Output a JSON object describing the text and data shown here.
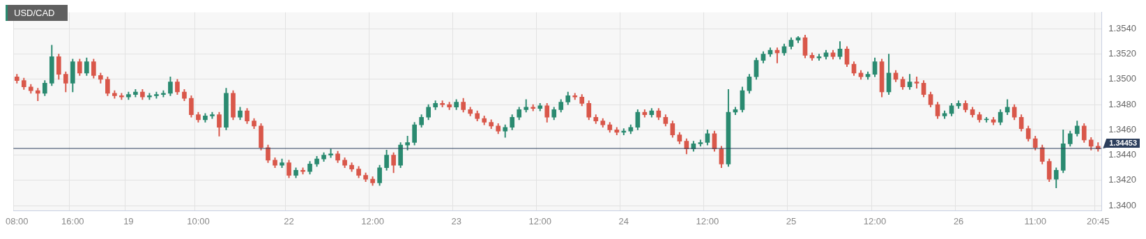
{
  "chart_data": {
    "type": "candlestick",
    "title": "USD/CAD",
    "categories": [
      "08:00",
      null,
      null,
      null,
      null,
      null,
      null,
      null,
      "16:00",
      null,
      null,
      null,
      null,
      null,
      null,
      null,
      "19",
      null,
      null,
      null,
      null,
      null,
      null,
      null,
      null,
      null,
      "10:00",
      null,
      null,
      null,
      null,
      null,
      null,
      null,
      null,
      null,
      null,
      null,
      null,
      "22",
      null,
      null,
      null,
      null,
      null,
      null,
      null,
      null,
      null,
      null,
      null,
      "12:00",
      null,
      null,
      null,
      null,
      null,
      null,
      null,
      null,
      null,
      null,
      null,
      "23",
      null,
      null,
      null,
      null,
      null,
      null,
      null,
      null,
      null,
      null,
      null,
      "12:00",
      null,
      null,
      null,
      null,
      null,
      null,
      null,
      null,
      null,
      null,
      null,
      "24",
      null,
      null,
      null,
      null,
      null,
      null,
      null,
      null,
      null,
      null,
      null,
      "12:00",
      null,
      null,
      null,
      null,
      null,
      null,
      null,
      null,
      null,
      null,
      null,
      "25",
      null,
      null,
      null,
      null,
      null,
      null,
      null,
      null,
      null,
      null,
      null,
      "12:00",
      null,
      null,
      null,
      null,
      null,
      null,
      null,
      null,
      null,
      null,
      null,
      "26",
      null,
      null,
      null,
      null,
      null,
      null,
      null,
      null,
      null,
      null,
      "11:00",
      null,
      null,
      null,
      null,
      null,
      null,
      null,
      null,
      "20:45"
    ],
    "ohlc": [
      [
        1.3502,
        1.3504,
        1.3497,
        1.3499
      ],
      [
        1.3499,
        1.3501,
        1.3492,
        1.3494
      ],
      [
        1.3494,
        1.3496,
        1.3489,
        1.3491
      ],
      [
        1.3491,
        1.3493,
        1.3483,
        1.3489
      ],
      [
        1.3489,
        1.3499,
        1.3487,
        1.3497
      ],
      [
        1.3497,
        1.3527,
        1.3495,
        1.3518
      ],
      [
        1.3518,
        1.352,
        1.35,
        1.3504
      ],
      [
        1.3504,
        1.3506,
        1.349,
        1.3497
      ],
      [
        1.3497,
        1.3516,
        1.349,
        1.3514
      ],
      [
        1.3514,
        1.3516,
        1.3503,
        1.3505
      ],
      [
        1.3505,
        1.3517,
        1.3503,
        1.3514
      ],
      [
        1.3514,
        1.3516,
        1.3501,
        1.3503
      ],
      [
        1.3503,
        1.3505,
        1.3497,
        1.35
      ],
      [
        1.35,
        1.3502,
        1.3487,
        1.3489
      ],
      [
        1.3489,
        1.3491,
        1.3485,
        1.3487
      ],
      [
        1.3487,
        1.3489,
        1.3484,
        1.3486
      ],
      [
        1.3486,
        1.349,
        1.3484,
        1.3488
      ],
      [
        1.3488,
        1.3492,
        1.3486,
        1.349
      ],
      [
        1.349,
        1.3492,
        1.3484,
        1.3486
      ],
      [
        1.3486,
        1.3489,
        1.3484,
        1.3487
      ],
      [
        1.3487,
        1.349,
        1.3485,
        1.3488
      ],
      [
        1.3488,
        1.3491,
        1.3486,
        1.3489
      ],
      [
        1.3489,
        1.3502,
        1.3487,
        1.3498
      ],
      [
        1.3498,
        1.35,
        1.3488,
        1.349
      ],
      [
        1.349,
        1.3492,
        1.3483,
        1.3485
      ],
      [
        1.3485,
        1.3487,
        1.347,
        1.3472
      ],
      [
        1.3472,
        1.3474,
        1.3466,
        1.3468
      ],
      [
        1.3468,
        1.3473,
        1.3466,
        1.3471
      ],
      [
        1.3471,
        1.3474,
        1.3469,
        1.3472
      ],
      [
        1.3472,
        1.3474,
        1.3455,
        1.3462
      ],
      [
        1.3462,
        1.3493,
        1.346,
        1.3489
      ],
      [
        1.3489,
        1.3491,
        1.3468,
        1.347
      ],
      [
        1.347,
        1.3478,
        1.3468,
        1.3475
      ],
      [
        1.3475,
        1.3477,
        1.3465,
        1.3467
      ],
      [
        1.3467,
        1.3469,
        1.3461,
        1.3463
      ],
      [
        1.3463,
        1.3465,
        1.3444,
        1.3446
      ],
      [
        1.3446,
        1.3448,
        1.3434,
        1.3436
      ],
      [
        1.3436,
        1.3438,
        1.343,
        1.3432
      ],
      [
        1.3432,
        1.3437,
        1.343,
        1.3434
      ],
      [
        1.3434,
        1.3436,
        1.3422,
        1.3424
      ],
      [
        1.3424,
        1.343,
        1.3422,
        1.3428
      ],
      [
        1.3428,
        1.343,
        1.3425,
        1.3427
      ],
      [
        1.3427,
        1.3435,
        1.3425,
        1.3433
      ],
      [
        1.3433,
        1.3439,
        1.3431,
        1.3437
      ],
      [
        1.3437,
        1.3442,
        1.3435,
        1.344
      ],
      [
        1.344,
        1.3445,
        1.3438,
        1.3441
      ],
      [
        1.3441,
        1.3443,
        1.3434,
        1.3436
      ],
      [
        1.3436,
        1.3438,
        1.343,
        1.3432
      ],
      [
        1.3432,
        1.3434,
        1.3427,
        1.3429
      ],
      [
        1.3429,
        1.3431,
        1.3422,
        1.3424
      ],
      [
        1.3424,
        1.3426,
        1.3419,
        1.3421
      ],
      [
        1.3421,
        1.3423,
        1.3416,
        1.3418
      ],
      [
        1.3418,
        1.3432,
        1.3416,
        1.343
      ],
      [
        1.343,
        1.3444,
        1.3428,
        1.344
      ],
      [
        1.344,
        1.3442,
        1.3426,
        1.3432
      ],
      [
        1.3432,
        1.345,
        1.343,
        1.3448
      ],
      [
        1.3448,
        1.3455,
        1.3444,
        1.345
      ],
      [
        1.345,
        1.3466,
        1.3448,
        1.3464
      ],
      [
        1.3464,
        1.3472,
        1.3462,
        1.347
      ],
      [
        1.347,
        1.348,
        1.3468,
        1.3478
      ],
      [
        1.3478,
        1.3483,
        1.3476,
        1.3481
      ],
      [
        1.3481,
        1.3483,
        1.3478,
        1.348
      ],
      [
        1.348,
        1.3482,
        1.3476,
        1.3478
      ],
      [
        1.3478,
        1.3484,
        1.3476,
        1.3482
      ],
      [
        1.3482,
        1.3485,
        1.3474,
        1.3476
      ],
      [
        1.3476,
        1.3478,
        1.3471,
        1.3473
      ],
      [
        1.3473,
        1.3475,
        1.3467,
        1.3469
      ],
      [
        1.3469,
        1.3471,
        1.3464,
        1.3466
      ],
      [
        1.3466,
        1.3468,
        1.3461,
        1.3463
      ],
      [
        1.3463,
        1.3465,
        1.3457,
        1.3459
      ],
      [
        1.3459,
        1.3464,
        1.3454,
        1.3462
      ],
      [
        1.3462,
        1.3472,
        1.346,
        1.347
      ],
      [
        1.347,
        1.3478,
        1.3468,
        1.3476
      ],
      [
        1.3476,
        1.3484,
        1.3474,
        1.3478
      ],
      [
        1.3478,
        1.348,
        1.3475,
        1.3477
      ],
      [
        1.3477,
        1.3481,
        1.3475,
        1.3479
      ],
      [
        1.3479,
        1.3481,
        1.3466,
        1.347
      ],
      [
        1.347,
        1.3478,
        1.3468,
        1.3476
      ],
      [
        1.3476,
        1.3484,
        1.3474,
        1.3482
      ],
      [
        1.3482,
        1.349,
        1.348,
        1.3487
      ],
      [
        1.3487,
        1.3489,
        1.3484,
        1.3486
      ],
      [
        1.3486,
        1.3488,
        1.3479,
        1.3481
      ],
      [
        1.3481,
        1.3483,
        1.3468,
        1.347
      ],
      [
        1.347,
        1.3472,
        1.3465,
        1.3467
      ],
      [
        1.3467,
        1.3469,
        1.3462,
        1.3464
      ],
      [
        1.3464,
        1.3466,
        1.3458,
        1.346
      ],
      [
        1.346,
        1.3462,
        1.3456,
        1.3458
      ],
      [
        1.3458,
        1.3461,
        1.3456,
        1.3459
      ],
      [
        1.3459,
        1.3464,
        1.3457,
        1.3462
      ],
      [
        1.3462,
        1.3476,
        1.346,
        1.3474
      ],
      [
        1.3474,
        1.3476,
        1.347,
        1.3472
      ],
      [
        1.3472,
        1.3477,
        1.347,
        1.3475
      ],
      [
        1.3475,
        1.3477,
        1.3468,
        1.347
      ],
      [
        1.347,
        1.3472,
        1.3463,
        1.3465
      ],
      [
        1.3465,
        1.3467,
        1.3454,
        1.3456
      ],
      [
        1.3456,
        1.3458,
        1.3449,
        1.3451
      ],
      [
        1.3451,
        1.3453,
        1.3441,
        1.3445
      ],
      [
        1.3445,
        1.3451,
        1.3443,
        1.3449
      ],
      [
        1.3449,
        1.3452,
        1.3447,
        1.345
      ],
      [
        1.345,
        1.346,
        1.3448,
        1.3457
      ],
      [
        1.3457,
        1.3459,
        1.3443,
        1.3445
      ],
      [
        1.3445,
        1.3447,
        1.343,
        1.3433
      ],
      [
        1.3433,
        1.3492,
        1.3431,
        1.3474
      ],
      [
        1.3474,
        1.3478,
        1.3472,
        1.3476
      ],
      [
        1.3476,
        1.3494,
        1.3474,
        1.3491
      ],
      [
        1.3491,
        1.3504,
        1.3489,
        1.3502
      ],
      [
        1.3502,
        1.3517,
        1.35,
        1.3515
      ],
      [
        1.3515,
        1.3522,
        1.3513,
        1.352
      ],
      [
        1.352,
        1.3525,
        1.3518,
        1.3523
      ],
      [
        1.3523,
        1.3525,
        1.3513,
        1.3521
      ],
      [
        1.3521,
        1.3528,
        1.3519,
        1.3526
      ],
      [
        1.3526,
        1.3533,
        1.3524,
        1.3531
      ],
      [
        1.3531,
        1.3534,
        1.3529,
        1.3533
      ],
      [
        1.3533,
        1.3535,
        1.3517,
        1.3519
      ],
      [
        1.3519,
        1.3521,
        1.3515,
        1.3517
      ],
      [
        1.3517,
        1.352,
        1.3515,
        1.3518
      ],
      [
        1.3518,
        1.3523,
        1.3516,
        1.3521
      ],
      [
        1.3521,
        1.3523,
        1.3516,
        1.3518
      ],
      [
        1.3518,
        1.353,
        1.3516,
        1.3524
      ],
      [
        1.3524,
        1.3526,
        1.351,
        1.3512
      ],
      [
        1.3512,
        1.3514,
        1.3503,
        1.3505
      ],
      [
        1.3505,
        1.3507,
        1.35,
        1.3502
      ],
      [
        1.3502,
        1.3506,
        1.35,
        1.3504
      ],
      [
        1.3504,
        1.3517,
        1.3502,
        1.3514
      ],
      [
        1.3514,
        1.3516,
        1.3486,
        1.349
      ],
      [
        1.349,
        1.352,
        1.3488,
        1.3505
      ],
      [
        1.3505,
        1.3507,
        1.3498,
        1.35
      ],
      [
        1.35,
        1.3502,
        1.3492,
        1.3494
      ],
      [
        1.3494,
        1.3504,
        1.3492,
        1.3498
      ],
      [
        1.3498,
        1.3502,
        1.3493,
        1.3497
      ],
      [
        1.3497,
        1.3499,
        1.3486,
        1.3488
      ],
      [
        1.3488,
        1.349,
        1.3478,
        1.348
      ],
      [
        1.348,
        1.3482,
        1.3469,
        1.3471
      ],
      [
        1.3471,
        1.3475,
        1.3469,
        1.3473
      ],
      [
        1.3473,
        1.3481,
        1.3471,
        1.3479
      ],
      [
        1.3479,
        1.3483,
        1.3477,
        1.3481
      ],
      [
        1.3481,
        1.3483,
        1.3474,
        1.3476
      ],
      [
        1.3476,
        1.3478,
        1.347,
        1.3472
      ],
      [
        1.3472,
        1.3474,
        1.3466,
        1.3468
      ],
      [
        1.3468,
        1.347,
        1.3466,
        1.3468
      ],
      [
        1.3468,
        1.347,
        1.3464,
        1.3466
      ],
      [
        1.3466,
        1.3476,
        1.3464,
        1.3474
      ],
      [
        1.3474,
        1.3484,
        1.3472,
        1.3478
      ],
      [
        1.3478,
        1.348,
        1.3468,
        1.347
      ],
      [
        1.347,
        1.3472,
        1.3459,
        1.3461
      ],
      [
        1.3461,
        1.3463,
        1.3451,
        1.3453
      ],
      [
        1.3453,
        1.3455,
        1.3444,
        1.3446
      ],
      [
        1.3446,
        1.3448,
        1.3433,
        1.3435
      ],
      [
        1.3435,
        1.3437,
        1.3419,
        1.3421
      ],
      [
        1.3421,
        1.343,
        1.3414,
        1.3428
      ],
      [
        1.3428,
        1.346,
        1.3426,
        1.3449
      ],
      [
        1.3449,
        1.3459,
        1.3447,
        1.3457
      ],
      [
        1.3457,
        1.3467,
        1.3455,
        1.3463
      ],
      [
        1.3463,
        1.3465,
        1.345,
        1.3452
      ],
      [
        1.3452,
        1.3454,
        1.3444,
        1.3447
      ],
      [
        1.3447,
        1.345,
        1.3443,
        1.3445
      ]
    ],
    "colors": [
      "#d9574a",
      "#d9574a",
      "#d9574a",
      "#d9574a",
      "#2a8a70",
      "#2a8a70",
      "#d9574a",
      "#d9574a",
      "#2a8a70",
      "#d9574a",
      "#2a8a70",
      "#d9574a",
      "#d9574a",
      "#d9574a",
      "#d9574a",
      "#d9574a",
      "#2a8a70",
      "#2a8a70",
      "#d9574a",
      "#2a8a70",
      "#2a8a70",
      "#2a8a70",
      "#2a8a70",
      "#d9574a",
      "#d9574a",
      "#d9574a",
      "#d9574a",
      "#2a8a70",
      "#2a8a70",
      "#d9574a",
      "#2a8a70",
      "#d9574a",
      "#2a8a70",
      "#d9574a",
      "#d9574a",
      "#d9574a",
      "#d9574a",
      "#d9574a",
      "#2a8a70",
      "#d9574a",
      "#2a8a70",
      "#d9574a",
      "#2a8a70",
      "#2a8a70",
      "#2a8a70",
      "#2a8a70",
      "#d9574a",
      "#d9574a",
      "#d9574a",
      "#d9574a",
      "#d9574a",
      "#d9574a",
      "#2a8a70",
      "#2a8a70",
      "#d9574a",
      "#2a8a70",
      "#2a8a70",
      "#2a8a70",
      "#2a8a70",
      "#2a8a70",
      "#2a8a70",
      "#d9574a",
      "#d9574a",
      "#2a8a70",
      "#d9574a",
      "#d9574a",
      "#d9574a",
      "#d9574a",
      "#d9574a",
      "#d9574a",
      "#2a8a70",
      "#2a8a70",
      "#2a8a70",
      "#2a8a70",
      "#d9574a",
      "#2a8a70",
      "#d9574a",
      "#2a8a70",
      "#2a8a70",
      "#2a8a70",
      "#d9574a",
      "#d9574a",
      "#d9574a",
      "#d9574a",
      "#d9574a",
      "#d9574a",
      "#d9574a",
      "#2a8a70",
      "#2a8a70",
      "#2a8a70",
      "#d9574a",
      "#2a8a70",
      "#d9574a",
      "#d9574a",
      "#d9574a",
      "#d9574a",
      "#d9574a",
      "#2a8a70",
      "#2a8a70",
      "#2a8a70",
      "#d9574a",
      "#d9574a",
      "#2a8a70",
      "#2a8a70",
      "#2a8a70",
      "#2a8a70",
      "#2a8a70",
      "#2a8a70",
      "#2a8a70",
      "#d9574a",
      "#2a8a70",
      "#2a8a70",
      "#2a8a70",
      "#d9574a",
      "#d9574a",
      "#2a8a70",
      "#2a8a70",
      "#d9574a",
      "#2a8a70",
      "#d9574a",
      "#d9574a",
      "#d9574a",
      "#2a8a70",
      "#2a8a70",
      "#d9574a",
      "#2a8a70",
      "#d9574a",
      "#d9574a",
      "#2a8a70",
      "#d9574a",
      "#d9574a",
      "#d9574a",
      "#d9574a",
      "#2a8a70",
      "#2a8a70",
      "#2a8a70",
      "#d9574a",
      "#d9574a",
      "#d9574a",
      "#2a8a70",
      "#d9574a",
      "#2a8a70",
      "#2a8a70",
      "#d9574a",
      "#d9574a",
      "#d9574a",
      "#d9574a",
      "#d9574a",
      "#d9574a",
      "#2a8a70",
      "#2a8a70",
      "#2a8a70",
      "#2a8a70",
      "#d9574a",
      "#d9574a",
      "#d9574a"
    ],
    "ylim": [
      1.3396,
      1.3553
    ],
    "yticks": [
      {
        "value": 1.34,
        "label": "1.3400"
      },
      {
        "value": 1.342,
        "label": "1.3420"
      },
      {
        "value": 1.344,
        "label": "1.3440"
      },
      {
        "value": 1.346,
        "label": "1.3460"
      },
      {
        "value": 1.348,
        "label": "1.3480"
      },
      {
        "value": 1.35,
        "label": "1.3500"
      },
      {
        "value": 1.352,
        "label": "1.3520"
      },
      {
        "value": 1.354,
        "label": "1.3540"
      }
    ],
    "grid": true,
    "ref_lines": [
      {
        "axis": "y",
        "value": 1.34453,
        "label": "1.34453",
        "color": "#2c3e5c"
      }
    ]
  }
}
